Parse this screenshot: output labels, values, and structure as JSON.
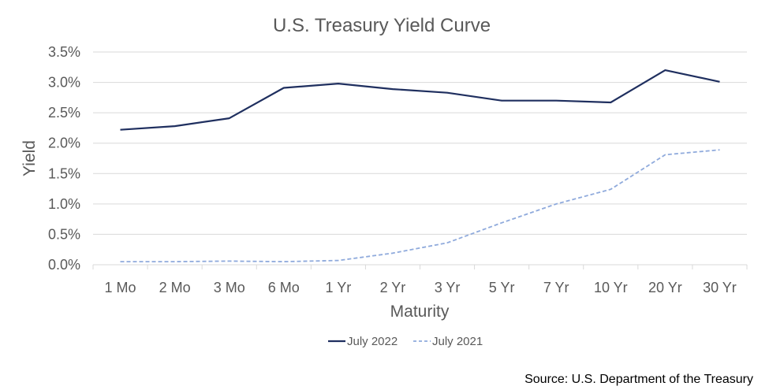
{
  "chart_data": {
    "type": "line",
    "title": "U.S. Treasury Yield Curve",
    "xlabel": "Maturity",
    "ylabel": "Yield",
    "categories": [
      "1 Mo",
      "2 Mo",
      "3 Mo",
      "6 Mo",
      "1 Yr",
      "2 Yr",
      "3 Yr",
      "5 Yr",
      "7 Yr",
      "10 Yr",
      "20 Yr",
      "30 Yr"
    ],
    "ylim": [
      0,
      3.5
    ],
    "yticks": [
      "0.0%",
      "0.5%",
      "1.0%",
      "1.5%",
      "2.0%",
      "2.5%",
      "3.0%",
      "3.5%"
    ],
    "grid": true,
    "legend_position": "bottom",
    "series": [
      {
        "name": "July 2022",
        "color": "#1f2f5f",
        "style": "solid",
        "values": [
          2.22,
          2.28,
          2.41,
          2.91,
          2.98,
          2.89,
          2.83,
          2.7,
          2.7,
          2.67,
          3.2,
          3.01
        ]
      },
      {
        "name": "July 2021",
        "color": "#8faadc",
        "style": "dashed",
        "values": [
          0.05,
          0.05,
          0.06,
          0.05,
          0.07,
          0.19,
          0.36,
          0.69,
          1.0,
          1.24,
          1.81,
          1.89
        ]
      }
    ]
  },
  "source": "Source: U.S. Department of the Treasury"
}
